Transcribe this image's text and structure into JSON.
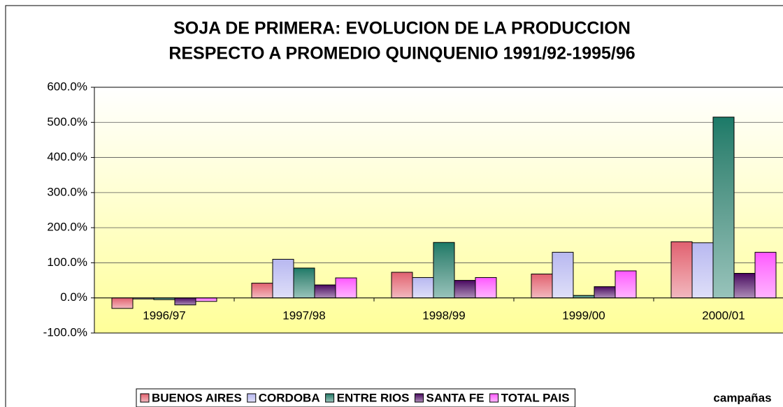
{
  "chart_data": {
    "type": "bar",
    "title": [
      "SOJA DE PRIMERA: EVOLUCION DE LA PRODUCCION",
      "RESPECTO A PROMEDIO QUINQUENIO 1991/92-1995/96"
    ],
    "x_label": "campañas",
    "categories": [
      "1996/97",
      "1997/98",
      "1998/99",
      "1999/00",
      "2000/01"
    ],
    "series": [
      {
        "name": "BUENOS AIRES",
        "color": "#e06070",
        "values": [
          -30,
          42,
          73,
          68,
          160
        ]
      },
      {
        "name": "CORDOBA",
        "color": "#b8b8f0",
        "values": [
          -3,
          110,
          58,
          130,
          157
        ]
      },
      {
        "name": "ENTRE RIOS",
        "color": "#1a7a68",
        "values": [
          -5,
          85,
          158,
          7,
          515
        ]
      },
      {
        "name": "SANTA FE",
        "color": "#4a0060",
        "values": [
          -20,
          37,
          50,
          32,
          70
        ]
      },
      {
        "name": "TOTAL PAIS",
        "color": "#ff55ff",
        "values": [
          -10,
          57,
          58,
          77,
          130
        ]
      }
    ],
    "ylim": [
      -100,
      600
    ],
    "yticks": [
      {
        "value": -100,
        "label": "-100.0%"
      },
      {
        "value": 0,
        "label": "0.0%"
      },
      {
        "value": 100,
        "label": "100.0%"
      },
      {
        "value": 200,
        "label": "200.0%"
      },
      {
        "value": 300,
        "label": "300.0%"
      },
      {
        "value": 400,
        "label": "400.0%"
      },
      {
        "value": 500,
        "label": "500.0%"
      },
      {
        "value": 600,
        "label": "600.0%"
      }
    ],
    "grid": true,
    "legend": "bottom"
  }
}
